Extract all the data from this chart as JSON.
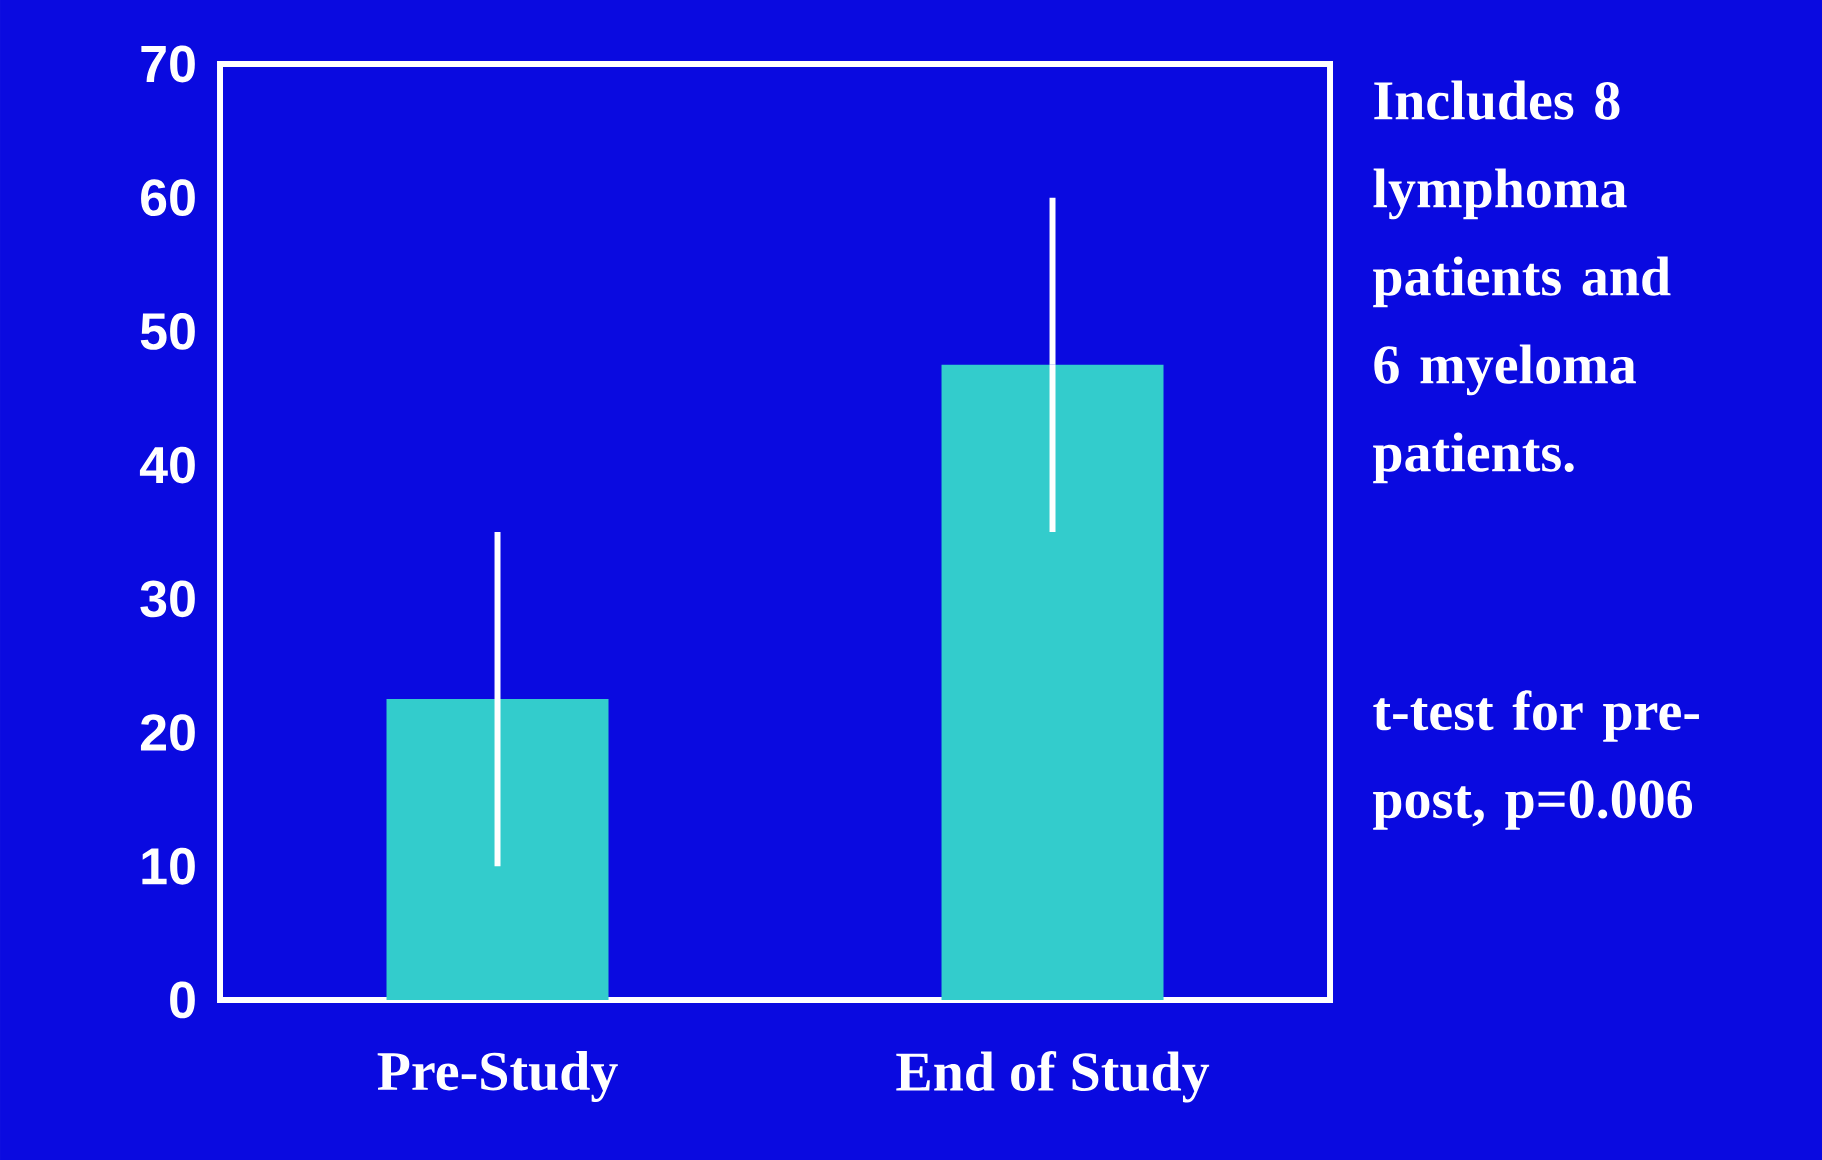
{
  "chart_data": {
    "type": "bar",
    "categories": [
      "Pre-Study",
      "End of Study"
    ],
    "values": [
      22.5,
      47.5
    ],
    "errors": [
      12.5,
      12.5
    ],
    "color": "#33cccc",
    "ylim": [
      0,
      70
    ],
    "yticks": [
      0,
      10,
      20,
      30,
      40,
      50,
      60,
      70
    ],
    "annotations": [
      "Includes 8 lymphoma patients and 6 myeloma patients.",
      "t-test for pre-post, p=0.006"
    ]
  }
}
